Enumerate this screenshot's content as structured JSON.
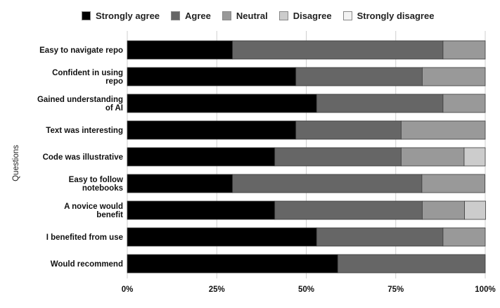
{
  "chart_data": {
    "type": "bar",
    "orientation": "horizontal",
    "stacked": true,
    "normalized": true,
    "title": "",
    "xlabel": "",
    "ylabel": "Questions",
    "xlim": [
      0,
      100
    ],
    "xticks": [
      "0%",
      "25%",
      "50%",
      "75%",
      "100%"
    ],
    "legend_position": "top",
    "categories": [
      [
        "Easy to navigate repo"
      ],
      [
        "Confident in using",
        "repo"
      ],
      [
        "Gained understanding",
        "of AI"
      ],
      [
        "Text was interesting"
      ],
      [
        "Code was illustrative"
      ],
      [
        "Easy to follow",
        "notebooks"
      ],
      [
        "A novice would",
        "benefit"
      ],
      [
        "I benefited from use"
      ],
      [
        "Would recommend"
      ]
    ],
    "series": [
      {
        "name": "Strongly agree",
        "color": "#000000",
        "values": [
          29.4,
          47.1,
          52.9,
          47.1,
          41.2,
          29.4,
          41.2,
          52.9,
          58.8
        ]
      },
      {
        "name": "Agree",
        "color": "#666666",
        "values": [
          58.8,
          35.3,
          35.3,
          29.4,
          35.3,
          52.9,
          41.2,
          35.3,
          41.2
        ]
      },
      {
        "name": "Neutral",
        "color": "#999999",
        "values": [
          11.8,
          17.6,
          11.8,
          23.5,
          17.6,
          17.6,
          11.8,
          11.8,
          0
        ]
      },
      {
        "name": "Disagree",
        "color": "#cccccc",
        "values": [
          0,
          0,
          0,
          0,
          5.9,
          0,
          5.9,
          0,
          0
        ]
      },
      {
        "name": "Strongly disagree",
        "color": "#f3f3f3",
        "values": [
          0,
          0,
          0,
          0,
          0,
          0,
          0,
          0,
          0
        ]
      }
    ]
  }
}
